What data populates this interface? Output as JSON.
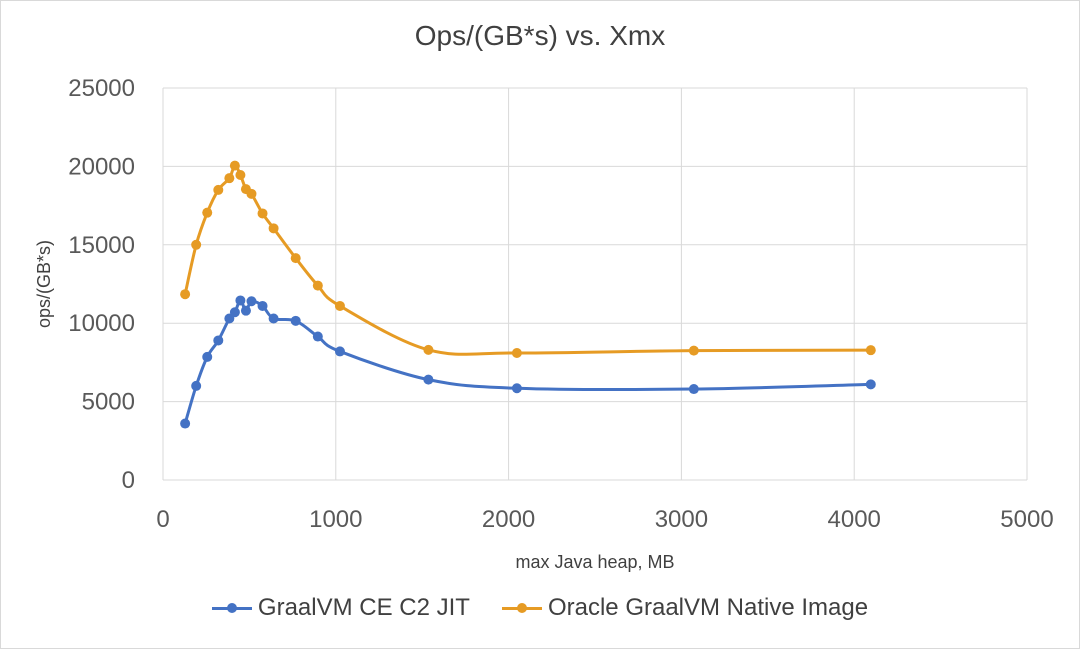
{
  "chart_data": {
    "type": "line",
    "title": "Ops/(GB*s) vs. Xmx",
    "xlabel": "max Java heap, MB",
    "ylabel": "ops/(GB*s)",
    "xlim": [
      0,
      5000
    ],
    "ylim": [
      0,
      25000
    ],
    "x_ticks": [
      "0",
      "1000",
      "2000",
      "3000",
      "4000",
      "5000"
    ],
    "y_ticks": [
      "0",
      "5000",
      "10000",
      "15000",
      "20000",
      "25000"
    ],
    "grid": true,
    "legend_position": "bottom",
    "series": [
      {
        "name": "GraalVM CE C2 JIT",
        "color": "#4472c4",
        "points": [
          [
            128,
            3600
          ],
          [
            192,
            6000
          ],
          [
            256,
            7850
          ],
          [
            320,
            8900
          ],
          [
            384,
            10300
          ],
          [
            416,
            10700
          ],
          [
            448,
            11450
          ],
          [
            480,
            10800
          ],
          [
            512,
            11400
          ],
          [
            576,
            11100
          ],
          [
            640,
            10300
          ],
          [
            768,
            10150
          ],
          [
            896,
            9150
          ],
          [
            1024,
            8200
          ],
          [
            1536,
            6400
          ],
          [
            2048,
            5850
          ],
          [
            3072,
            5800
          ],
          [
            4096,
            6100
          ]
        ]
      },
      {
        "name": "Oracle GraalVM Native Image",
        "color": "#e69b24",
        "points": [
          [
            128,
            11850
          ],
          [
            192,
            15000
          ],
          [
            256,
            17050
          ],
          [
            320,
            18500
          ],
          [
            384,
            19250
          ],
          [
            416,
            20050
          ],
          [
            448,
            19450
          ],
          [
            480,
            18550
          ],
          [
            512,
            18250
          ],
          [
            576,
            17000
          ],
          [
            640,
            16050
          ],
          [
            768,
            14150
          ],
          [
            896,
            12400
          ],
          [
            1024,
            11100
          ],
          [
            1536,
            8300
          ],
          [
            2048,
            8100
          ],
          [
            3072,
            8250
          ],
          [
            4096,
            8280
          ]
        ]
      }
    ]
  }
}
